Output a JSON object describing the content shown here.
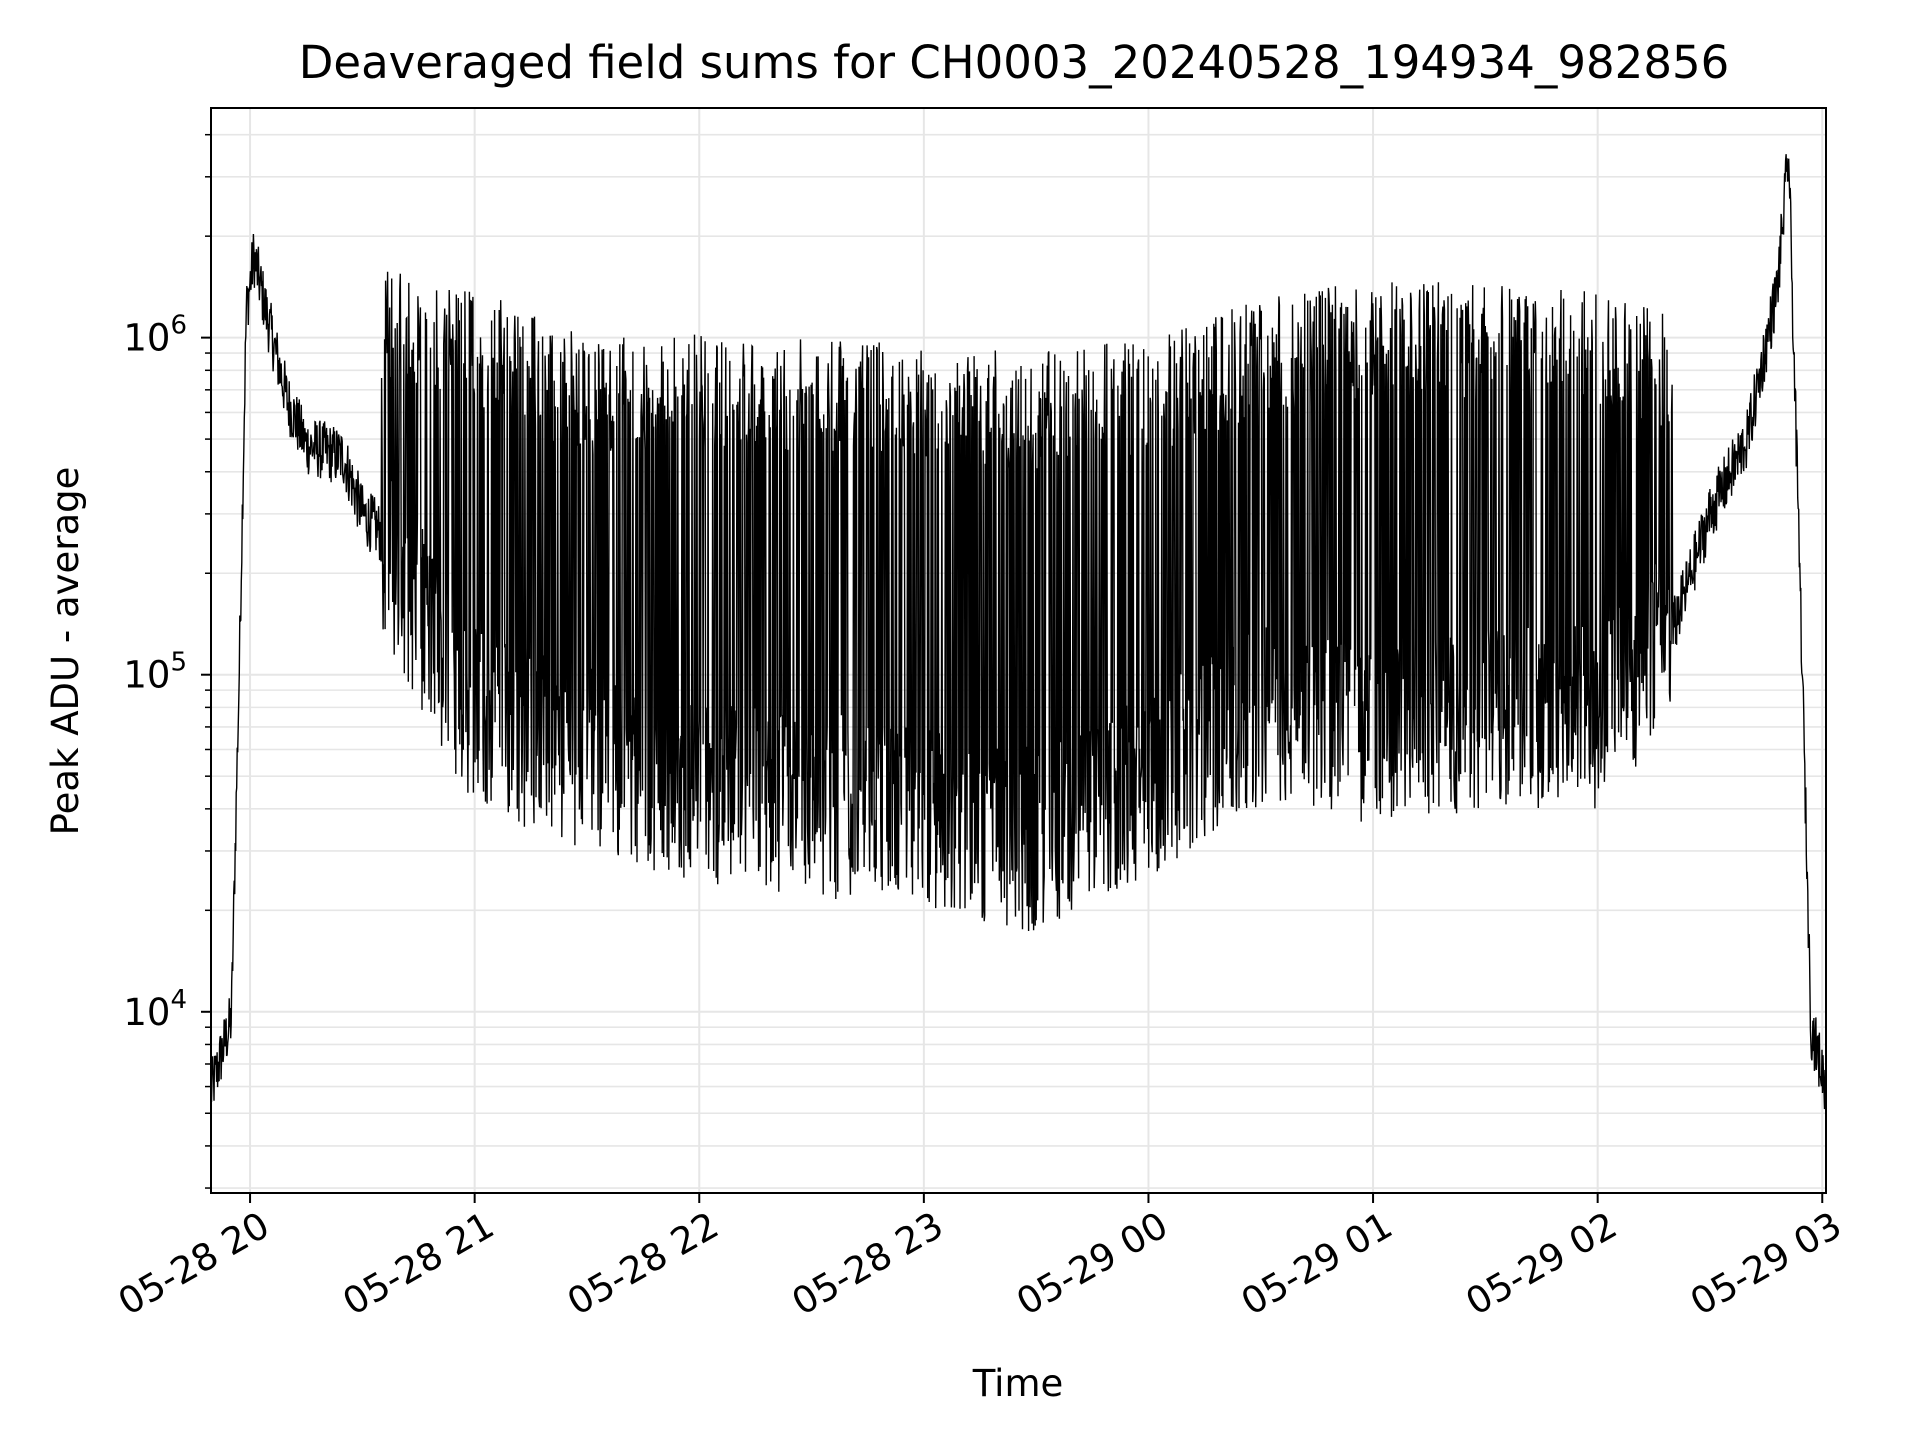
{
  "chart_data": {
    "type": "line",
    "title": "Deaveraged field sums for CH0003_20240528_194934_982856",
    "xlabel": "Time",
    "ylabel": "Peak ADU - average",
    "xlim": [
      "05-28 19:49:34",
      "05-29 03:01:00"
    ],
    "ylim": [
      2900,
      4800000
    ],
    "yscale": "log",
    "grid": true,
    "line_color": "#000000",
    "grid_color": "#e6e6e6",
    "x_ticks": [
      "05-28 20",
      "05-28 21",
      "05-28 22",
      "05-28 23",
      "05-29 00",
      "05-29 01",
      "05-29 02",
      "05-29 03"
    ],
    "y_ticks": [
      {
        "base": "10",
        "exp": "4",
        "value": 10000
      },
      {
        "base": "10",
        "exp": "5",
        "value": 100000
      },
      {
        "base": "10",
        "exp": "6",
        "value": 1000000
      }
    ],
    "series": [
      {
        "envelope": {
          "note_units": "time as 'MM-DD HH:MM', ADU values",
          "baseline": [
            [
              "05-28 19:49",
              5500
            ],
            [
              "05-28 19:55",
              9500
            ],
            [
              "05-28 19:57",
              90000
            ],
            [
              "05-28 19:59",
              1200000
            ],
            [
              "05-28 20:01",
              1750000
            ],
            [
              "05-28 20:05",
              1100000
            ],
            [
              "05-28 20:10",
              650000
            ],
            [
              "05-28 20:15",
              480000
            ],
            [
              "05-28 20:20",
              460000
            ],
            [
              "05-28 20:25",
              440000
            ],
            [
              "05-28 20:30",
              300000
            ],
            [
              "05-28 20:40",
              230000
            ],
            [
              "05-28 20:50",
              140000
            ],
            [
              "05-28 21:00",
              80000
            ],
            [
              "05-28 21:10",
              60000
            ],
            [
              "05-28 21:20",
              50000
            ],
            [
              "05-28 21:40",
              42000
            ],
            [
              "05-28 22:00",
              36000
            ],
            [
              "05-28 22:20",
              32000
            ],
            [
              "05-28 22:40",
              30000
            ],
            [
              "05-28 23:00",
              28000
            ],
            [
              "05-28 23:20",
              26000
            ],
            [
              "05-28 23:40",
              25000
            ],
            [
              "05-29 00:00",
              32000
            ],
            [
              "05-29 00:20",
              45000
            ],
            [
              "05-29 00:40",
              55000
            ],
            [
              "05-29 01:00",
              60000
            ],
            [
              "05-29 01:20",
              65000
            ],
            [
              "05-29 01:40",
              62000
            ],
            [
              "05-29 02:00",
              60000
            ],
            [
              "05-29 02:15",
              90000
            ],
            [
              "05-29 02:30",
              300000
            ],
            [
              "05-29 02:40",
              500000
            ],
            [
              "05-29 02:48",
              1400000
            ],
            [
              "05-29 02:51",
              3500000
            ],
            [
              "05-29 02:54",
              200000
            ],
            [
              "05-29 02:57",
              9000
            ],
            [
              "05-29 03:01",
              6000
            ]
          ],
          "spike_tops": [
            [
              "05-28 20:35",
              1600000
            ],
            [
              "05-28 21:00",
              1400000
            ],
            [
              "05-28 21:30",
              1000000
            ],
            [
              "05-28 22:00",
              1050000
            ],
            [
              "05-28 22:30",
              1000000
            ],
            [
              "05-28 23:00",
              950000
            ],
            [
              "05-28 23:30",
              900000
            ],
            [
              "05-29 00:00",
              1000000
            ],
            [
              "05-29 00:30",
              1300000
            ],
            [
              "05-29 01:00",
              1500000
            ],
            [
              "05-29 01:30",
              1450000
            ],
            [
              "05-29 02:00",
              1400000
            ],
            [
              "05-29 02:20",
              1200000
            ]
          ],
          "spike_bottoms": [
            [
              "05-28 20:35",
              130000
            ],
            [
              "05-28 21:00",
              40000
            ],
            [
              "05-28 21:30",
              30000
            ],
            [
              "05-28 22:00",
              24000
            ],
            [
              "05-28 22:30",
              22000
            ],
            [
              "05-28 23:00",
              20000
            ],
            [
              "05-28 23:30",
              17000
            ],
            [
              "05-29 00:00",
              25000
            ],
            [
              "05-29 00:30",
              40000
            ],
            [
              "05-29 01:00",
              35000
            ],
            [
              "05-29 01:30",
              40000
            ],
            [
              "05-29 02:00",
              40000
            ],
            [
              "05-29 02:20",
              70000
            ]
          ]
        }
      }
    ]
  }
}
